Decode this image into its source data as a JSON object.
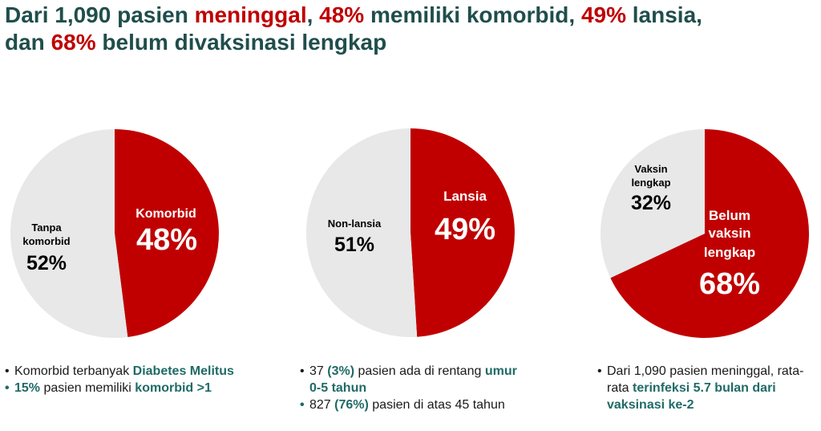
{
  "title": {
    "line1_a": "Dari 1,090 pasien ",
    "line1_b": "meninggal",
    "line1_c": ", ",
    "line1_d": "48%",
    "line1_e": " memiliki komorbid, ",
    "line1_f": "49%",
    "line1_g": " lansia,",
    "line2_a": "dan ",
    "line2_b": "68%",
    "line2_c": " belum divaksinasi lengkap"
  },
  "chart_data": [
    {
      "type": "pie",
      "slices": [
        {
          "label": "Komorbid",
          "value": 48,
          "value_label": "48%",
          "color": "#c00000"
        },
        {
          "label": "Tanpa komorbid",
          "value": 52,
          "value_label": "52%",
          "color": "#e8e8e8"
        }
      ]
    },
    {
      "type": "pie",
      "slices": [
        {
          "label": "Lansia",
          "value": 49,
          "value_label": "49%",
          "color": "#c00000"
        },
        {
          "label": "Non-lansia",
          "value": 51,
          "value_label": "51%",
          "color": "#e8e8e8"
        }
      ]
    },
    {
      "type": "pie",
      "slices": [
        {
          "label": "Belum vaksin lengkap",
          "value": 68,
          "value_label": "68%",
          "color": "#c00000"
        },
        {
          "label": "Vaksin lengkap",
          "value": 32,
          "value_label": "32%",
          "color": "#e8e8e8"
        }
      ]
    }
  ],
  "pie_labels": {
    "p1_red_line1": "Komorbid",
    "p1_grey_line1": "Tanpa",
    "p1_grey_line2": "komorbid",
    "p2_red_line1": "Lansia",
    "p2_grey_line1": "Non-lansia",
    "p3_red_line1": "Belum",
    "p3_red_line2": "vaksin",
    "p3_red_line3": "lengkap",
    "p3_grey_line1": "Vaksin",
    "p3_grey_line2": "lengkap"
  },
  "notes": {
    "n1_b1_a": "Komorbid terbanyak ",
    "n1_b1_b": "Diabetes Melitus",
    "n1_b2_a": "15%",
    "n1_b2_b": " pasien memiliki ",
    "n1_b2_c": "komorbid >1",
    "n2_b1_a": "37 ",
    "n2_b1_b": "(3%)",
    "n2_b1_c": " pasien ada di rentang ",
    "n2_b1_d": "umur 0-5 tahun",
    "n2_b2_a": " 827 ",
    "n2_b2_b": "(76%)",
    "n2_b2_c": " pasien di atas 45 tahun",
    "n3_b1_a": "Dari 1,090 pasien meninggal, rata-rata ",
    "n3_b1_b": "terinfeksi 5.7 bulan dari vaksinasi ke-2"
  },
  "bullets": {
    "dot": "•"
  },
  "colors": {
    "red": "#c00000",
    "grey": "#e8e8e8",
    "teal": "#1f6b66",
    "title": "#1f4e4c"
  }
}
